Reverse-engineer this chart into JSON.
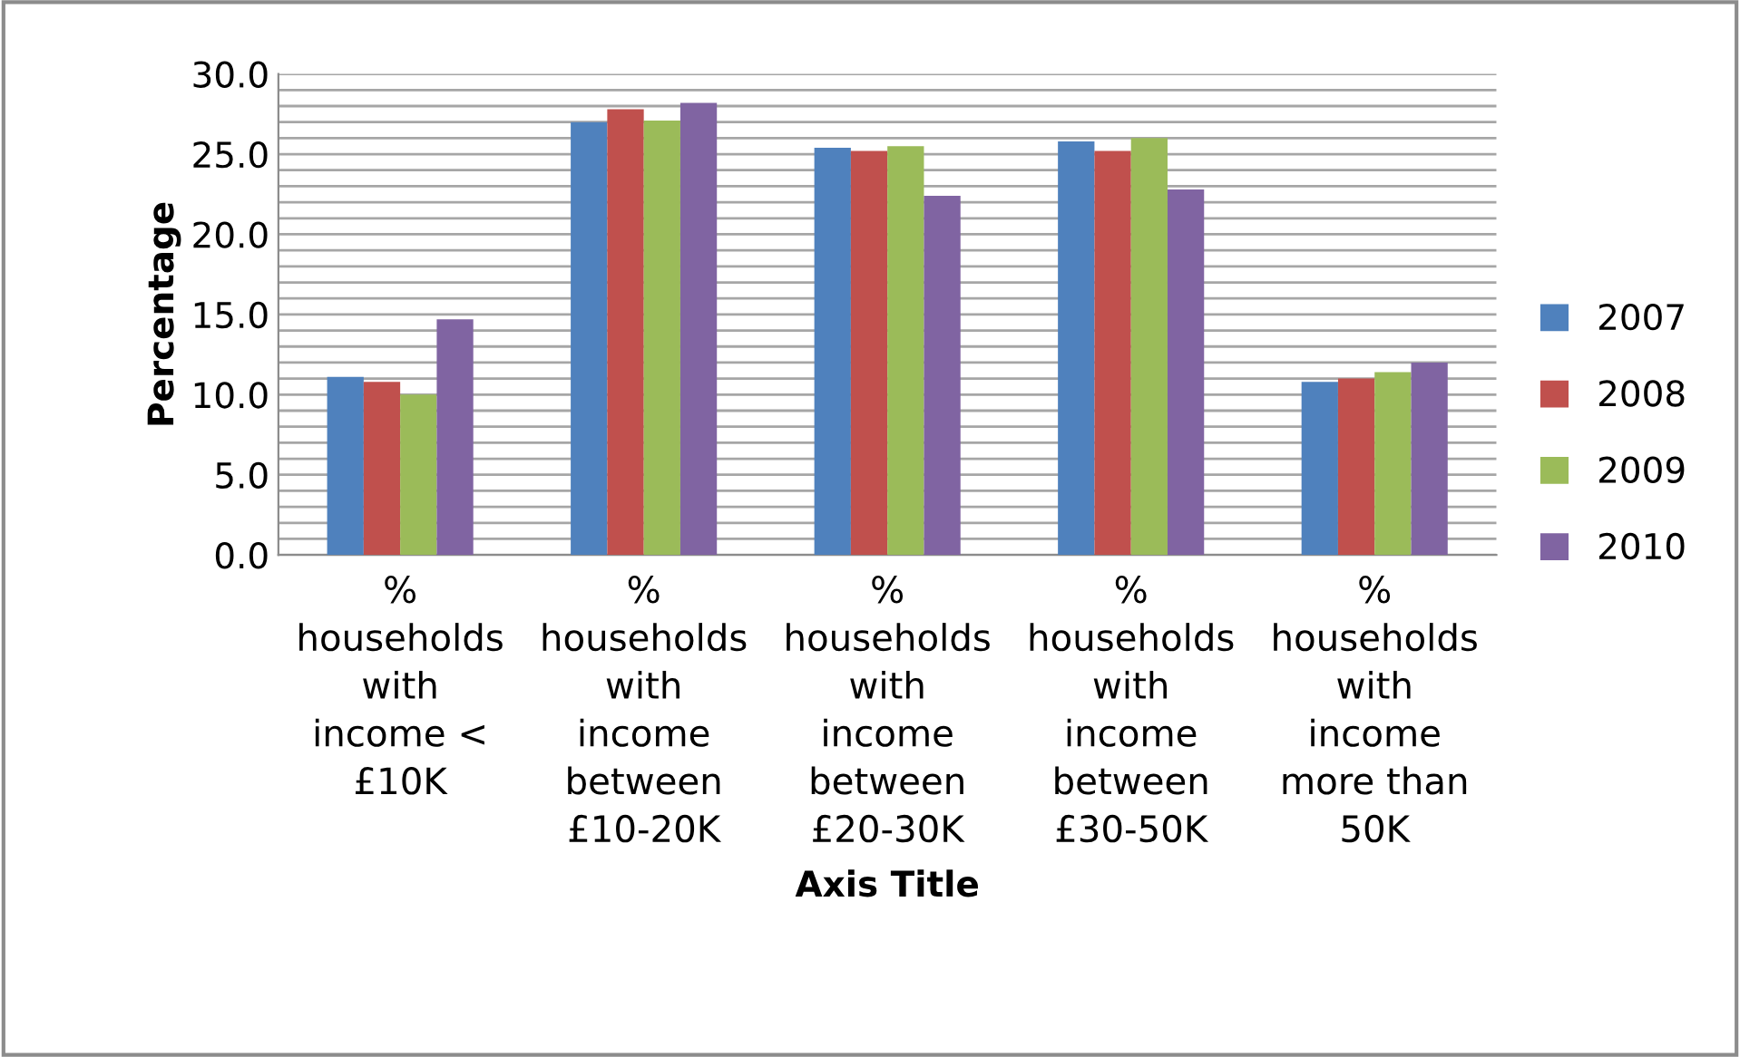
{
  "chart_data": {
    "type": "bar",
    "xlabel": "Axis Title",
    "ylabel": "Percentage",
    "categories": [
      "% households with income < £10K",
      "% households with income between £10-20K",
      "% households with income between £20-30K",
      "% households with income between £30-50K",
      "% households with income more than 50K"
    ],
    "series": [
      {
        "name": "2007",
        "color": "#4f81bd",
        "values": [
          11.1,
          27.0,
          25.4,
          25.8,
          10.8
        ]
      },
      {
        "name": "2008",
        "color": "#c0504d",
        "values": [
          10.8,
          27.8,
          25.2,
          25.2,
          11.0
        ]
      },
      {
        "name": "2009",
        "color": "#9bbb59",
        "values": [
          10.0,
          27.1,
          25.5,
          26.0,
          11.4
        ]
      },
      {
        "name": "2010",
        "color": "#8064a2",
        "values": [
          14.7,
          28.2,
          22.4,
          22.8,
          12.0
        ]
      }
    ],
    "ylim": [
      0,
      30
    ],
    "yticks": [
      {
        "value": 0,
        "label": "0.0"
      },
      {
        "value": 1,
        "label": null
      },
      {
        "value": 2,
        "label": null
      },
      {
        "value": 3,
        "label": null
      },
      {
        "value": 4,
        "label": null
      },
      {
        "value": 5,
        "label": "5.0"
      },
      {
        "value": 6,
        "label": null
      },
      {
        "value": 7,
        "label": null
      },
      {
        "value": 8,
        "label": null
      },
      {
        "value": 9,
        "label": null
      },
      {
        "value": 10,
        "label": "10.0"
      },
      {
        "value": 11,
        "label": null
      },
      {
        "value": 12,
        "label": null
      },
      {
        "value": 13,
        "label": null
      },
      {
        "value": 14,
        "label": null
      },
      {
        "value": 15,
        "label": "15.0"
      },
      {
        "value": 16,
        "label": null
      },
      {
        "value": 17,
        "label": null
      },
      {
        "value": 18,
        "label": null
      },
      {
        "value": 19,
        "label": null
      },
      {
        "value": 20,
        "label": "20.0"
      },
      {
        "value": 21,
        "label": null
      },
      {
        "value": 22,
        "label": null
      },
      {
        "value": 23,
        "label": null
      },
      {
        "value": 24,
        "label": null
      },
      {
        "value": 25,
        "label": "25.0"
      },
      {
        "value": 26,
        "label": null
      },
      {
        "value": 27,
        "label": null
      },
      {
        "value": 28,
        "label": null
      },
      {
        "value": 29,
        "label": null
      },
      {
        "value": 30,
        "label": "30.0"
      }
    ],
    "grid": "y",
    "legend": "right"
  }
}
